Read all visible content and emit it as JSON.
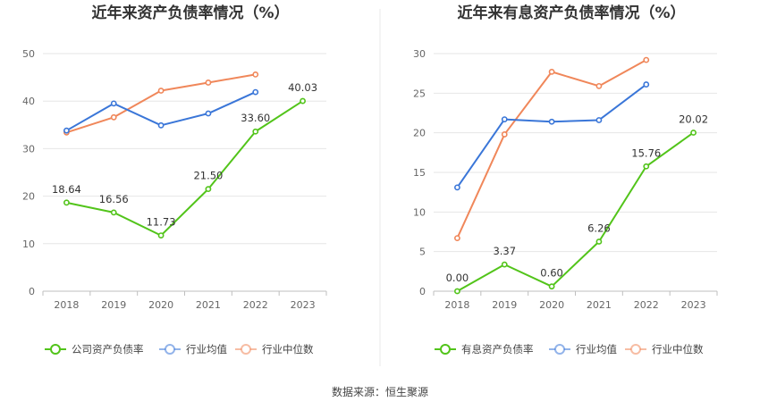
{
  "source": "数据来源：恒生聚源",
  "chart_data": [
    {
      "type": "line",
      "title": "近年来资产负债率情况（%）",
      "categories": [
        "2018",
        "2019",
        "2020",
        "2021",
        "2022",
        "2023"
      ],
      "ylim": [
        0,
        50
      ],
      "yticks": [
        0,
        10,
        20,
        30,
        40,
        50
      ],
      "grid": true,
      "legend_position": "bottom",
      "series": [
        {
          "name": "公司资产负债率",
          "color": "#52c41a",
          "values": [
            18.64,
            16.56,
            11.73,
            21.5,
            33.6,
            40.03
          ],
          "labels": [
            "18.64",
            "16.56",
            "11.73",
            "21.50",
            "33.60",
            "40.03"
          ]
        },
        {
          "name": "行业均值",
          "color": "#3a76d8",
          "values": [
            33.8,
            39.5,
            34.9,
            37.4,
            41.9,
            null
          ],
          "labels": null
        },
        {
          "name": "行业中位数",
          "color": "#f0875a",
          "values": [
            33.4,
            36.6,
            42.2,
            43.9,
            45.6,
            null
          ],
          "labels": null
        }
      ]
    },
    {
      "type": "line",
      "title": "近年来有息资产负债率情况（%）",
      "categories": [
        "2018",
        "2019",
        "2020",
        "2021",
        "2022",
        "2023"
      ],
      "ylim": [
        0,
        30
      ],
      "yticks": [
        0,
        5,
        10,
        15,
        20,
        25,
        30
      ],
      "grid": true,
      "legend_position": "bottom",
      "series": [
        {
          "name": "有息资产负债率",
          "color": "#52c41a",
          "values": [
            0.0,
            3.37,
            0.6,
            6.26,
            15.76,
            20.02
          ],
          "labels": [
            "0.00",
            "3.37",
            "0.60",
            "6.26",
            "15.76",
            "20.02"
          ]
        },
        {
          "name": "行业均值",
          "color": "#3a76d8",
          "values": [
            13.1,
            21.7,
            21.4,
            21.6,
            26.1,
            null
          ],
          "labels": null
        },
        {
          "name": "行业中位数",
          "color": "#f0875a",
          "values": [
            6.7,
            19.8,
            27.7,
            25.9,
            29.2,
            null
          ],
          "labels": null
        }
      ]
    }
  ]
}
